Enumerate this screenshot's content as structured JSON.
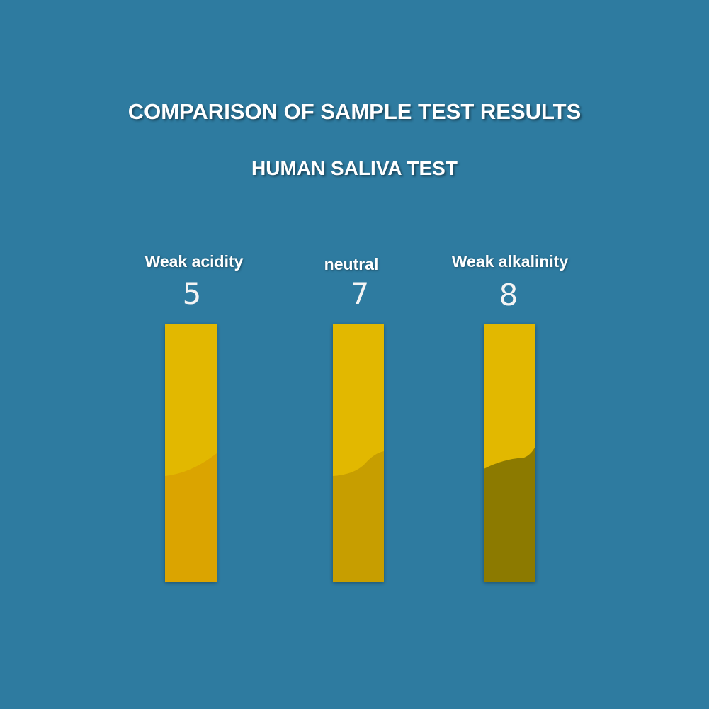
{
  "header": {
    "title": "COMPARISON OF SAMPLE TEST RESULTS",
    "subtitle": "HUMAN SALIVA TEST"
  },
  "strips": [
    {
      "label": "Weak acidity",
      "ph": 5
    },
    {
      "label": "neutral",
      "ph": 7
    },
    {
      "label": "Weak alkalinity",
      "ph": 8
    }
  ]
}
